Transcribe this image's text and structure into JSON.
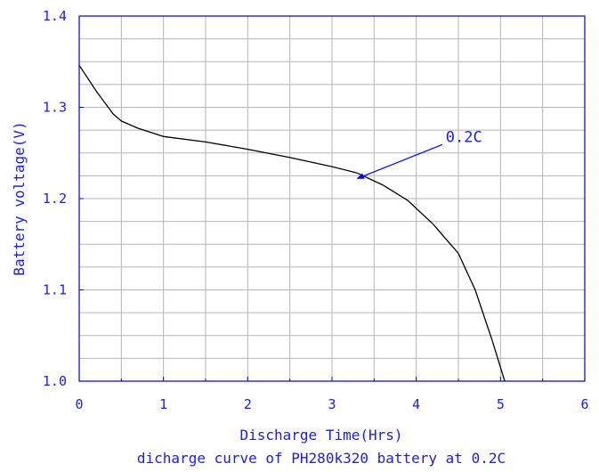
{
  "chart_data": {
    "type": "line",
    "title": "",
    "caption": "dicharge curve of PH280k320 battery at 0.2C",
    "xlabel": "Discharge Time(Hrs)",
    "ylabel": "Battery voltage(V)",
    "xlim": [
      0,
      6
    ],
    "ylim": [
      1.0,
      1.4
    ],
    "grid": true,
    "x_ticks": [
      0,
      1,
      2,
      3,
      4,
      5,
      6
    ],
    "x_tick_labels": [
      "0",
      "1",
      "2",
      "3",
      "4",
      "5",
      "6"
    ],
    "y_ticks": [
      1.0,
      1.1,
      1.2,
      1.3,
      1.4
    ],
    "y_tick_labels": [
      "1.0",
      "1.1",
      "1.2",
      "1.3",
      "1.4"
    ],
    "series": [
      {
        "name": "0.2C",
        "x": [
          0,
          0.2,
          0.4,
          0.5,
          0.7,
          1.0,
          1.5,
          2.0,
          2.5,
          3.0,
          3.3,
          3.6,
          3.9,
          4.2,
          4.5,
          4.7,
          4.9,
          5.05
        ],
        "y": [
          1.346,
          1.318,
          1.293,
          1.285,
          1.277,
          1.268,
          1.262,
          1.254,
          1.245,
          1.235,
          1.228,
          1.215,
          1.198,
          1.172,
          1.14,
          1.1,
          1.045,
          1.0
        ]
      }
    ],
    "annotations": [
      {
        "text": "0.2C",
        "x": 3.3,
        "y": 1.222,
        "text_x": 4.35,
        "text_y": 1.262
      }
    ],
    "colors": {
      "axis": "#0000cc",
      "text": "#1a1aff",
      "grid": "#b5b5b5",
      "line": "#000000",
      "arrow": "#0000ff"
    }
  }
}
